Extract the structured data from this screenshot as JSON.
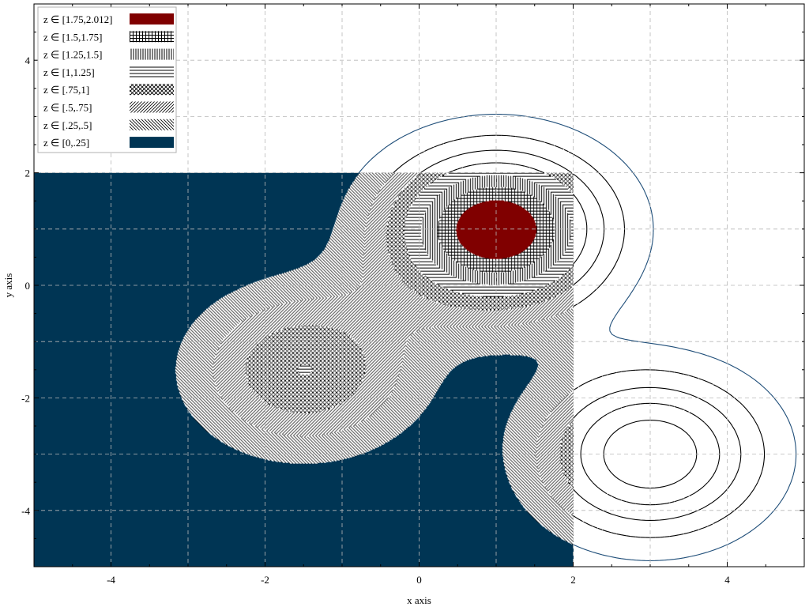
{
  "chart_data": {
    "type": "contour",
    "xlabel": "x axis",
    "ylabel": "y axis",
    "xlim": [
      -5,
      5
    ],
    "ylim": [
      -5,
      5
    ],
    "x_ticks": [
      -4,
      -2,
      0,
      2,
      4
    ],
    "y_ticks": [
      -4,
      -2,
      0,
      2,
      4
    ],
    "grid": true,
    "grid_style": "dashed",
    "legend_position": "top-left",
    "z_max": 2.012,
    "filled_region": {
      "description_note": "filled contours drawn for x <= 2 and y <= 2; line contours elsewhere",
      "x_max": 2,
      "y_max": 2
    },
    "peaks": [
      {
        "x": 1,
        "y": 1,
        "height": 2
      },
      {
        "x": -1.5,
        "y": -1.5,
        "height": 1
      },
      {
        "x": 3,
        "y": -3,
        "height": 1.5
      }
    ],
    "levels": [
      {
        "label": "z ∈ [1.75,2.012]",
        "min": 1.75,
        "max": 2.012,
        "fill": "#800000",
        "pattern": "solid"
      },
      {
        "label": "z ∈ [1.5,1.75]",
        "min": 1.5,
        "max": 1.75,
        "fill": "#000000",
        "pattern": "grid"
      },
      {
        "label": "z ∈ [1.25,1.5]",
        "min": 1.25,
        "max": 1.5,
        "fill": "#000000",
        "pattern": "vertical"
      },
      {
        "label": "z ∈ [1,1.25]",
        "min": 1,
        "max": 1.25,
        "fill": "#000000",
        "pattern": "horizontal"
      },
      {
        "label": "z ∈ [.75,1]",
        "min": 0.75,
        "max": 1,
        "fill": "#000000",
        "pattern": "crosshatch"
      },
      {
        "label": "z ∈ [.5,.75]",
        "min": 0.5,
        "max": 0.75,
        "fill": "#000000",
        "pattern": "diag-up"
      },
      {
        "label": "z ∈ [.25,.5]",
        "min": 0.25,
        "max": 0.5,
        "fill": "#000000",
        "pattern": "diag-down"
      },
      {
        "label": "z ∈ [0,.25]",
        "min": 0,
        "max": 0.25,
        "fill": "#003554",
        "pattern": "solid"
      }
    ],
    "line_contours": [
      {
        "level": 0.25,
        "color": "#1f4e79",
        "dash": "solid"
      },
      {
        "level": 0.5,
        "color": "#000000",
        "dash": "dashed"
      },
      {
        "level": 0.75,
        "color": "#000000",
        "dash": "solid"
      },
      {
        "level": 1.0,
        "color": "#000000",
        "dash": "dashed"
      },
      {
        "level": 1.25,
        "color": "#000000",
        "dash": "solid"
      },
      {
        "level": 1.5,
        "color": "#7a1c1c",
        "dash": "solid"
      }
    ]
  }
}
